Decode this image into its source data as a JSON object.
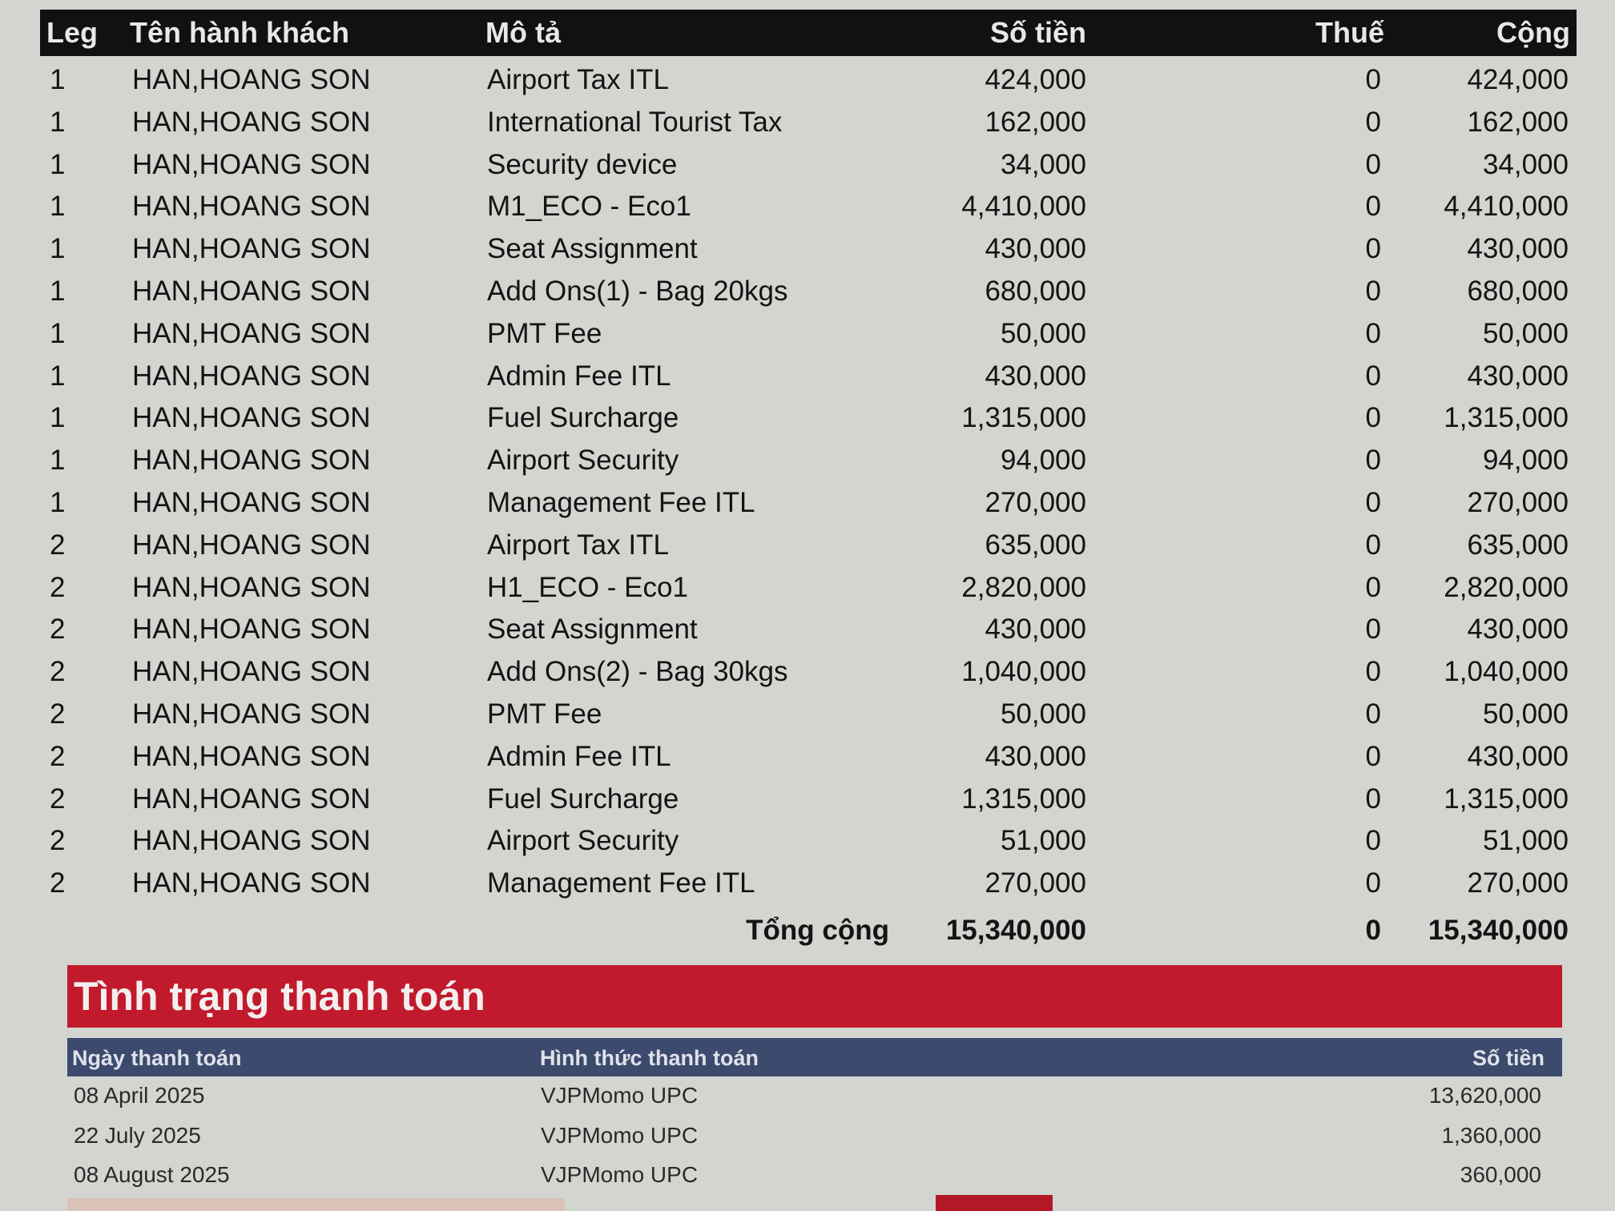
{
  "charges": {
    "headers": {
      "leg": "Leg",
      "passenger": "Tên hành khách",
      "description": "Mô tả",
      "amount": "Số tiền",
      "tax": "Thuế",
      "total": "Cộng"
    },
    "rows": [
      {
        "leg": "1",
        "passenger": "HAN,HOANG SON",
        "description": "Airport Tax ITL",
        "amount": "424,000",
        "tax": "0",
        "total": "424,000"
      },
      {
        "leg": "1",
        "passenger": "HAN,HOANG SON",
        "description": "International Tourist Tax",
        "amount": "162,000",
        "tax": "0",
        "total": "162,000"
      },
      {
        "leg": "1",
        "passenger": "HAN,HOANG SON",
        "description": "Security device",
        "amount": "34,000",
        "tax": "0",
        "total": "34,000"
      },
      {
        "leg": "1",
        "passenger": "HAN,HOANG SON",
        "description": "M1_ECO - Eco1",
        "amount": "4,410,000",
        "tax": "0",
        "total": "4,410,000"
      },
      {
        "leg": "1",
        "passenger": "HAN,HOANG SON",
        "description": "Seat Assignment",
        "amount": "430,000",
        "tax": "0",
        "total": "430,000"
      },
      {
        "leg": "1",
        "passenger": "HAN,HOANG SON",
        "description": "Add Ons(1) - Bag 20kgs",
        "amount": "680,000",
        "tax": "0",
        "total": "680,000"
      },
      {
        "leg": "1",
        "passenger": "HAN,HOANG SON",
        "description": "PMT Fee",
        "amount": "50,000",
        "tax": "0",
        "total": "50,000"
      },
      {
        "leg": "1",
        "passenger": "HAN,HOANG SON",
        "description": "Admin Fee ITL",
        "amount": "430,000",
        "tax": "0",
        "total": "430,000"
      },
      {
        "leg": "1",
        "passenger": "HAN,HOANG SON",
        "description": "Fuel Surcharge",
        "amount": "1,315,000",
        "tax": "0",
        "total": "1,315,000"
      },
      {
        "leg": "1",
        "passenger": "HAN,HOANG SON",
        "description": "Airport Security",
        "amount": "94,000",
        "tax": "0",
        "total": "94,000"
      },
      {
        "leg": "1",
        "passenger": "HAN,HOANG SON",
        "description": "Management Fee ITL",
        "amount": "270,000",
        "tax": "0",
        "total": "270,000"
      },
      {
        "leg": "2",
        "passenger": "HAN,HOANG SON",
        "description": "Airport Tax ITL",
        "amount": "635,000",
        "tax": "0",
        "total": "635,000"
      },
      {
        "leg": "2",
        "passenger": "HAN,HOANG SON",
        "description": "H1_ECO - Eco1",
        "amount": "2,820,000",
        "tax": "0",
        "total": "2,820,000"
      },
      {
        "leg": "2",
        "passenger": "HAN,HOANG SON",
        "description": "Seat Assignment",
        "amount": "430,000",
        "tax": "0",
        "total": "430,000"
      },
      {
        "leg": "2",
        "passenger": "HAN,HOANG SON",
        "description": "Add Ons(2) - Bag 30kgs",
        "amount": "1,040,000",
        "tax": "0",
        "total": "1,040,000"
      },
      {
        "leg": "2",
        "passenger": "HAN,HOANG SON",
        "description": "PMT Fee",
        "amount": "50,000",
        "tax": "0",
        "total": "50,000"
      },
      {
        "leg": "2",
        "passenger": "HAN,HOANG SON",
        "description": "Admin Fee ITL",
        "amount": "430,000",
        "tax": "0",
        "total": "430,000"
      },
      {
        "leg": "2",
        "passenger": "HAN,HOANG SON",
        "description": "Fuel Surcharge",
        "amount": "1,315,000",
        "tax": "0",
        "total": "1,315,000"
      },
      {
        "leg": "2",
        "passenger": "HAN,HOANG SON",
        "description": "Airport Security",
        "amount": "51,000",
        "tax": "0",
        "total": "51,000"
      },
      {
        "leg": "2",
        "passenger": "HAN,HOANG SON",
        "description": "Management Fee ITL",
        "amount": "270,000",
        "tax": "0",
        "total": "270,000"
      }
    ],
    "grand_total": {
      "label": "Tổng cộng",
      "amount": "15,340,000",
      "tax": "0",
      "total": "15,340,000"
    }
  },
  "payment": {
    "title": "Tình trạng thanh toán",
    "headers": {
      "date": "Ngày thanh toán",
      "method": "Hình thức thanh toán",
      "amount": "Số tiền"
    },
    "rows": [
      {
        "date": "08 April 2025",
        "method": "VJPMomo UPC",
        "amount": "13,620,000"
      },
      {
        "date": "22 July 2025",
        "method": "VJPMomo UPC",
        "amount": "1,360,000"
      },
      {
        "date": "08 August 2025",
        "method": "VJPMomo UPC",
        "amount": "360,000"
      }
    ]
  },
  "colors": {
    "header_bg": "#111111",
    "banner": "#c01a2c",
    "payment_header": "#3c4a6e",
    "background": "#d3d5d0"
  }
}
